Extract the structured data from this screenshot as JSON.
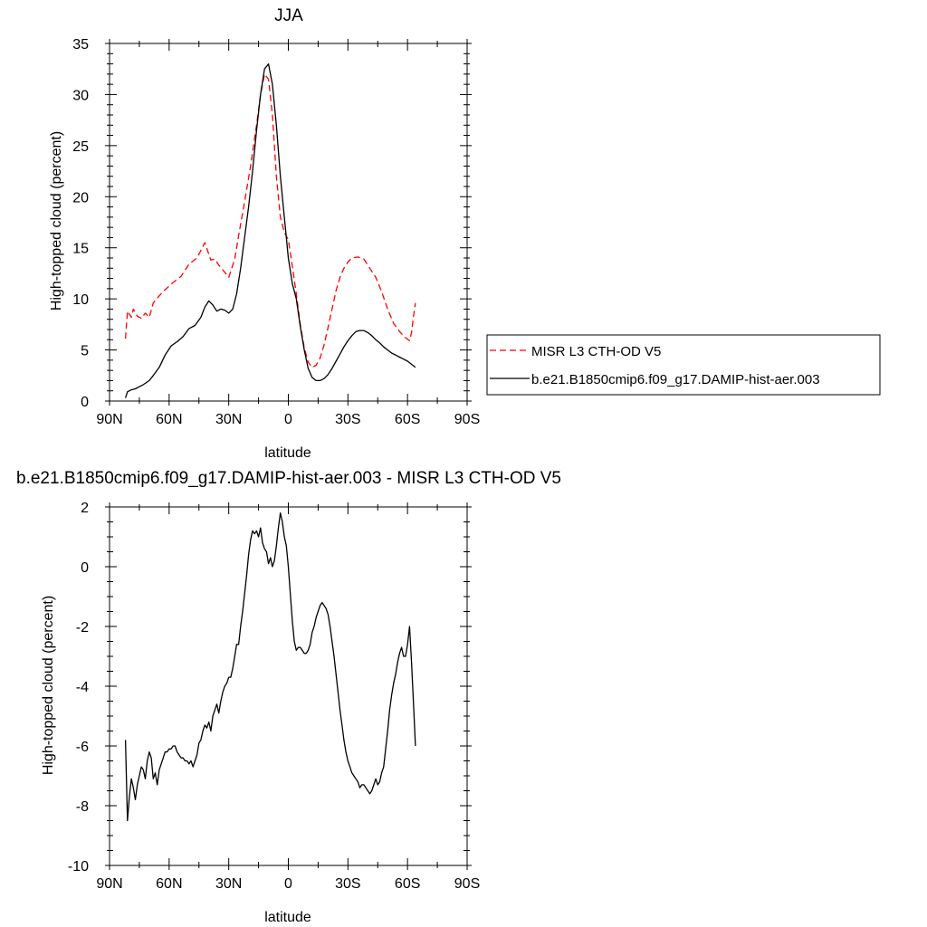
{
  "chart_data": [
    {
      "type": "line",
      "title": "JJA",
      "xlabel": "latitude",
      "ylabel": "High-topped cloud (percent)",
      "xlim": [
        90,
        -90
      ],
      "ylim": [
        0,
        35
      ],
      "xticks": [
        90,
        60,
        30,
        0,
        -30,
        -60,
        -90
      ],
      "xtick_labels": [
        "90N",
        "60N",
        "30N",
        "0",
        "30S",
        "60S",
        "90S"
      ],
      "yticks": [
        0,
        5,
        10,
        15,
        20,
        25,
        30,
        35
      ],
      "ytick_labels": [
        "0",
        "5",
        "10",
        "15",
        "20",
        "25",
        "30",
        "35"
      ],
      "grid": false,
      "legend": "outside-right",
      "series": [
        {
          "name": "MISR L3 CTH-OD V5",
          "color": "#ff0000",
          "style": "dashed",
          "x": [
            82,
            81,
            79,
            78,
            76,
            74,
            72,
            70,
            68,
            65,
            62,
            58,
            54,
            50,
            46,
            42,
            39,
            37,
            35,
            32,
            30,
            27,
            25,
            22,
            19,
            16,
            14,
            12,
            10,
            8,
            7,
            6,
            4,
            2,
            0,
            -2,
            -4,
            -6,
            -8,
            -10,
            -12,
            -14,
            -16,
            -18,
            -20,
            -22,
            -24,
            -26,
            -28,
            -30,
            -32,
            -35,
            -38,
            -41,
            -44,
            -47,
            -50,
            -53,
            -56,
            -59,
            -61,
            -62,
            -63,
            -64
          ],
          "y": [
            6.1,
            8.8,
            8.2,
            9.0,
            8.3,
            8.1,
            8.6,
            8.2,
            9.6,
            10.3,
            10.9,
            11.6,
            12.2,
            13.4,
            14.0,
            15.5,
            13.8,
            13.9,
            13.3,
            12.6,
            12.1,
            13.9,
            16.2,
            19.5,
            23.0,
            27.0,
            30.0,
            32.0,
            31.5,
            28.0,
            25.0,
            22.0,
            18.0,
            16.5,
            15.8,
            13.2,
            10.5,
            7.5,
            5.2,
            3.8,
            3.3,
            3.5,
            4.2,
            5.5,
            7.2,
            9.0,
            10.8,
            12.1,
            13.0,
            13.6,
            14.0,
            14.1,
            13.9,
            13.0,
            12.1,
            10.7,
            9.0,
            7.6,
            6.8,
            6.2,
            5.9,
            6.7,
            8.3,
            9.6
          ]
        },
        {
          "name": "b.e21.B1850cmip6.f09_g17.DAMIP-hist-aer.003",
          "color": "#000000",
          "style": "solid",
          "x": [
            82,
            81,
            79,
            77,
            75,
            73,
            70,
            68,
            65,
            62,
            59,
            56,
            53,
            50,
            47,
            44,
            42,
            40,
            38,
            36,
            34,
            32,
            30,
            28,
            26,
            24,
            22,
            20,
            18,
            16,
            14,
            12,
            10,
            8,
            6,
            4,
            2,
            0,
            -2,
            -4,
            -6,
            -8,
            -10,
            -12,
            -14,
            -16,
            -18,
            -20,
            -22,
            -24,
            -26,
            -28,
            -30,
            -32,
            -34,
            -36,
            -38,
            -40,
            -42,
            -44,
            -46,
            -48,
            -50,
            -52,
            -54,
            -56,
            -58,
            -60,
            -62,
            -64
          ],
          "y": [
            0.3,
            0.9,
            1.1,
            1.2,
            1.4,
            1.6,
            2.0,
            2.5,
            3.3,
            4.5,
            5.4,
            5.8,
            6.3,
            7.1,
            7.4,
            8.2,
            9.2,
            9.8,
            9.4,
            8.8,
            9.0,
            8.9,
            8.6,
            9.0,
            10.5,
            13.0,
            16.0,
            19.0,
            22.5,
            26.5,
            30.0,
            32.5,
            33.0,
            31.0,
            27.0,
            22.0,
            18.0,
            14.0,
            11.5,
            10.0,
            7.3,
            5.0,
            3.2,
            2.3,
            2.0,
            2.0,
            2.2,
            2.6,
            3.2,
            3.9,
            4.6,
            5.3,
            5.9,
            6.4,
            6.8,
            6.9,
            6.9,
            6.7,
            6.4,
            6.0,
            5.7,
            5.3,
            5.0,
            4.7,
            4.5,
            4.3,
            4.1,
            3.9,
            3.6,
            3.3
          ]
        }
      ]
    },
    {
      "type": "line",
      "title": "b.e21.B1850cmip6.f09_g17.DAMIP-hist-aer.003 - MISR L3 CTH-OD V5",
      "xlabel": "latitude",
      "ylabel": "High-topped cloud (percent)",
      "xlim": [
        90,
        -90
      ],
      "ylim": [
        -10,
        2
      ],
      "xticks": [
        90,
        60,
        30,
        0,
        -30,
        -60,
        -90
      ],
      "xtick_labels": [
        "90N",
        "60N",
        "30N",
        "0",
        "30S",
        "60S",
        "90S"
      ],
      "yticks": [
        -10,
        -8,
        -6,
        -4,
        -2,
        0,
        2
      ],
      "ytick_labels": [
        "-10",
        "-8",
        "-6",
        "-4",
        "-2",
        "0",
        "2"
      ],
      "grid": false,
      "legend": "none",
      "series": [
        {
          "name": "",
          "color": "#000000",
          "style": "solid",
          "x": [
            82,
            81,
            80,
            79,
            78,
            77,
            76,
            75,
            74,
            73,
            72,
            71,
            70,
            69,
            68,
            67,
            66,
            65,
            64,
            63,
            62,
            61,
            60,
            59,
            58,
            57,
            56,
            55,
            54,
            53,
            52,
            51,
            50,
            49,
            48,
            47,
            46,
            45,
            44,
            43,
            42,
            41,
            40,
            39,
            38,
            37,
            36,
            35,
            34,
            33,
            32,
            31,
            30,
            29,
            28,
            27,
            26,
            25,
            24,
            23,
            22,
            21,
            20,
            19,
            18,
            17,
            16,
            15,
            14,
            13,
            12,
            11,
            10,
            9,
            8,
            7,
            6,
            5,
            4,
            3,
            2,
            1,
            0,
            -1,
            -2,
            -3,
            -4,
            -5,
            -6,
            -7,
            -8,
            -9,
            -10,
            -11,
            -12,
            -13,
            -14,
            -15,
            -16,
            -17,
            -18,
            -19,
            -20,
            -21,
            -22,
            -23,
            -24,
            -25,
            -26,
            -27,
            -28,
            -29,
            -30,
            -31,
            -32,
            -33,
            -34,
            -35,
            -36,
            -37,
            -38,
            -39,
            -40,
            -41,
            -42,
            -43,
            -44,
            -45,
            -46,
            -47,
            -48,
            -49,
            -50,
            -51,
            -52,
            -53,
            -54,
            -55,
            -56,
            -57,
            -58,
            -59,
            -60,
            -61,
            -62,
            -63,
            -64
          ],
          "y": [
            -5.8,
            -8.5,
            -7.7,
            -7.1,
            -7.4,
            -7.8,
            -7.3,
            -7.0,
            -6.7,
            -6.8,
            -7.1,
            -6.5,
            -6.2,
            -6.4,
            -7.1,
            -6.9,
            -7.3,
            -6.8,
            -6.6,
            -6.4,
            -6.2,
            -6.2,
            -6.1,
            -6.1,
            -6.0,
            -6.0,
            -6.2,
            -6.3,
            -6.4,
            -6.4,
            -6.5,
            -6.5,
            -6.6,
            -6.5,
            -6.7,
            -6.5,
            -6.3,
            -5.9,
            -5.8,
            -5.5,
            -5.3,
            -5.4,
            -5.2,
            -5.5,
            -5.0,
            -4.8,
            -4.6,
            -4.9,
            -4.5,
            -4.2,
            -4.0,
            -3.9,
            -3.7,
            -3.7,
            -3.4,
            -3.0,
            -2.6,
            -2.6,
            -2.0,
            -1.5,
            -0.9,
            -0.3,
            0.4,
            0.9,
            1.2,
            1.1,
            1.2,
            1.0,
            1.3,
            0.8,
            0.6,
            0.5,
            0.1,
            0.3,
            0.0,
            0.2,
            0.7,
            1.3,
            1.8,
            1.5,
            1.0,
            0.7,
            0.0,
            -0.9,
            -1.8,
            -2.5,
            -2.8,
            -2.7,
            -2.7,
            -2.8,
            -2.9,
            -2.9,
            -2.8,
            -2.6,
            -2.2,
            -2.0,
            -1.7,
            -1.5,
            -1.3,
            -1.2,
            -1.3,
            -1.4,
            -1.6,
            -2.0,
            -2.5,
            -3.0,
            -3.6,
            -4.2,
            -4.8,
            -5.3,
            -5.8,
            -6.2,
            -6.5,
            -6.7,
            -6.9,
            -7.0,
            -7.1,
            -7.2,
            -7.4,
            -7.3,
            -7.3,
            -7.4,
            -7.5,
            -7.6,
            -7.5,
            -7.3,
            -7.1,
            -7.3,
            -7.2,
            -6.9,
            -6.7,
            -6.1,
            -5.5,
            -4.8,
            -4.3,
            -3.9,
            -3.6,
            -3.2,
            -2.9,
            -2.7,
            -3.0,
            -3.0,
            -2.6,
            -2.0,
            -3.2,
            -4.6,
            -6.0
          ]
        }
      ]
    }
  ]
}
